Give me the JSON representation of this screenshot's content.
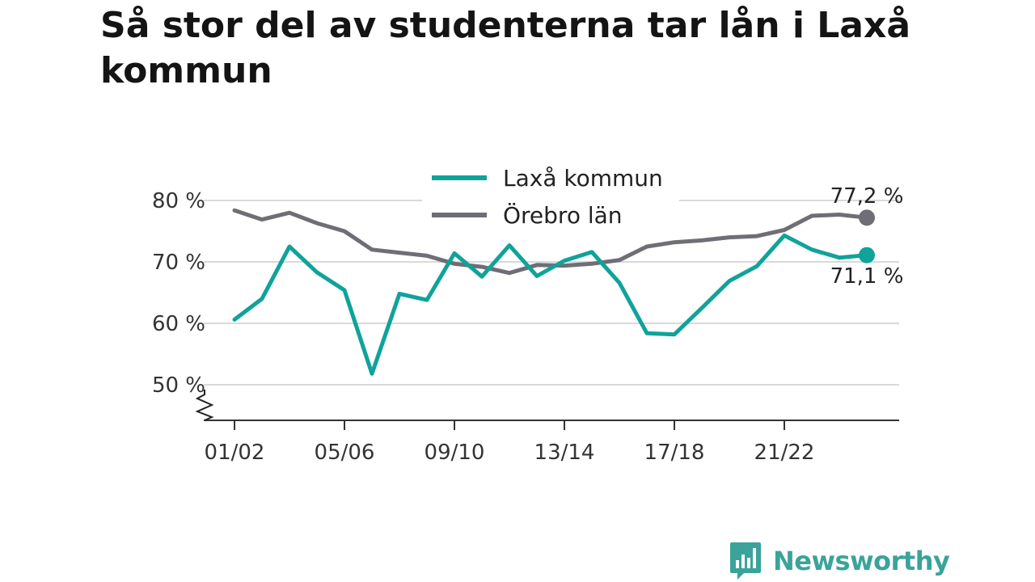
{
  "chart_data": {
    "type": "line",
    "title": "Så stor del av studenterna tar lån i Laxå kommun",
    "x": [
      "01/02",
      "02/03",
      "03/04",
      "04/05",
      "05/06",
      "06/07",
      "07/08",
      "08/09",
      "09/10",
      "10/11",
      "11/12",
      "12/13",
      "13/14",
      "14/15",
      "15/16",
      "16/17",
      "17/18",
      "18/19",
      "19/20",
      "20/21",
      "21/22",
      "22/23",
      "23/24",
      "24/25"
    ],
    "x_tick_labels": [
      "01/02",
      "05/06",
      "09/10",
      "13/14",
      "17/18",
      "21/22"
    ],
    "y_tick_labels": [
      "80 %",
      "70 %",
      "60 %",
      "50 %"
    ],
    "y_ticks": [
      80,
      70,
      60,
      50
    ],
    "ylim": [
      46,
      82
    ],
    "grid": true,
    "legend_position": "top-center",
    "series": [
      {
        "name": "Laxå kommun",
        "color": "#0fa39a",
        "end_label": "71,1 %",
        "values": [
          60.6,
          64.0,
          72.5,
          68.3,
          65.4,
          51.8,
          64.8,
          63.8,
          71.4,
          67.6,
          72.7,
          67.7,
          70.2,
          71.6,
          66.6,
          58.4,
          58.2,
          62.5,
          66.9,
          69.3,
          74.3,
          72.0,
          70.7,
          71.1
        ]
      },
      {
        "name": "Örebro län",
        "color": "#6f6e76",
        "end_label": "77,2 %",
        "values": [
          78.4,
          76.9,
          78.0,
          76.3,
          75.0,
          72.0,
          71.5,
          71.0,
          69.7,
          69.2,
          68.2,
          69.5,
          69.4,
          69.7,
          70.3,
          72.5,
          73.2,
          73.5,
          74.0,
          74.2,
          75.2,
          77.5,
          77.7,
          77.2
        ]
      }
    ]
  },
  "brand": {
    "name": "Newsworthy",
    "color": "#3aa39a"
  }
}
